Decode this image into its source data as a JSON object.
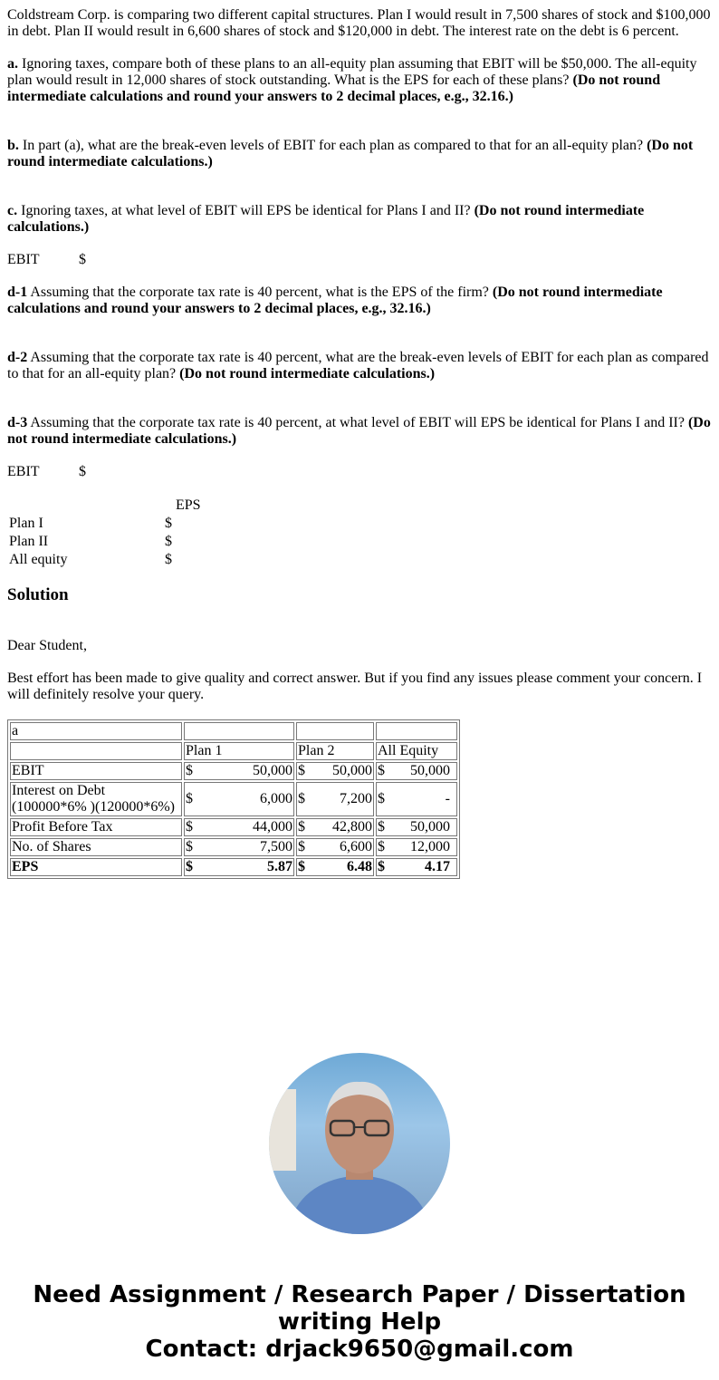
{
  "question": {
    "intro": "Coldstream Corp. is comparing two different capital structures. Plan I would result in 7,500 shares of stock and $100,000 in debt. Plan II would result in 6,600 shares of stock and $120,000 in debt. The interest rate on the debt is 6 percent.",
    "a_label": "a.",
    "a_text": " Ignoring taxes, compare both of these plans to an all-equity plan assuming that EBIT will be $50,000. The all-equity plan would result in 12,000 shares of stock outstanding. What is the EPS for each of these plans? ",
    "a_bold": "(Do not round intermediate calculations and round your answers to 2 decimal places, e.g., 32.16.)",
    "b_label": "b.",
    "b_text": " In part (a), what are the break-even levels of EBIT for each plan as compared to that for an all-equity plan? ",
    "b_bold": "(Do not round intermediate calculations.)",
    "c_label": "c.",
    "c_text": " Ignoring taxes, at what level of EBIT will EPS be identical for Plans I and II? ",
    "c_bold": "(Do not round intermediate calculations.)",
    "ebit_label": "EBIT",
    "dollar": "$",
    "d1_label": "d-1",
    "d1_text": " Assuming that the corporate tax rate is 40 percent, what is the EPS of the firm? ",
    "d1_bold": "(Do not round intermediate calculations and round your answers to 2 decimal places, e.g., 32.16.)",
    "d2_label": "d-2",
    "d2_text": " Assuming that the corporate tax rate is 40 percent, what are the break-even levels of EBIT for each plan as compared to that for an all-equity plan? ",
    "d2_bold": "(Do not round intermediate calculations.)",
    "d3_label": "d-3",
    "d3_text": " Assuming that the corporate tax rate is 40 percent, at what level of EBIT will EPS be identical for Plans I and II? ",
    "d3_bold": "(Do not round intermediate calculations.)",
    "eps_header": "EPS",
    "eps_rows": [
      "Plan I",
      "Plan II",
      "All equity"
    ]
  },
  "solution": {
    "heading": "Solution",
    "greeting": "Dear Student,",
    "note": "Best effort has been made to give quality and correct answer. But if you find any issues please comment your concern. I will definitely resolve your query.",
    "table": {
      "part": "a",
      "headers": [
        "Plan 1",
        "Plan 2",
        "All Equity"
      ],
      "rows": [
        {
          "label": "EBIT",
          "values": [
            "50,000",
            "50,000",
            "50,000"
          ]
        },
        {
          "label": "Interest on Debt (100000*6% )(120000*6%)",
          "values": [
            "6,000",
            "7,200",
            "-"
          ]
        },
        {
          "label": "Profit Before Tax",
          "values": [
            "44,000",
            "42,800",
            "50,000"
          ]
        },
        {
          "label": "No. of Shares",
          "values": [
            "7,500",
            "6,600",
            "12,000"
          ]
        },
        {
          "label": "EPS",
          "values": [
            "5.87",
            "6.48",
            "4.17"
          ],
          "bold": true
        }
      ]
    }
  },
  "footer": {
    "line1": "Need Assignment / Research Paper / Dissertation writing Help",
    "line2": "Contact: drjack9650@gmail.com"
  }
}
